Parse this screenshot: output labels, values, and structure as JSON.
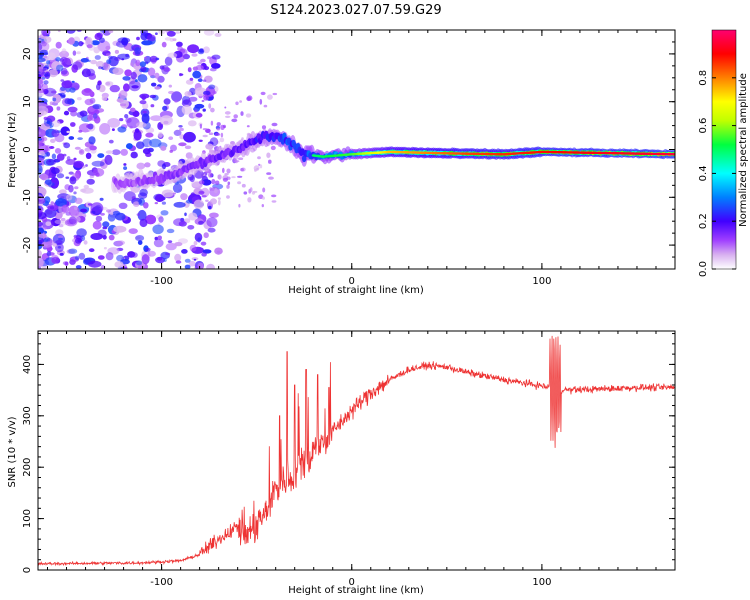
{
  "figure_title": "S124.2023.027.07.59.G29",
  "chart_data": [
    {
      "type": "heatmap",
      "xlabel": "Height of straight line (km)",
      "ylabel": "Frequency (Hz)",
      "xlim": [
        -165,
        170
      ],
      "ylim": [
        -25,
        25
      ],
      "x_ticks": [
        -100,
        0,
        100
      ],
      "y_ticks": [
        -20,
        -10,
        0,
        10,
        20
      ],
      "colorbar": {
        "label": "Normalized spectral amplitude",
        "range": [
          0.0,
          1.0
        ],
        "ticks": [
          "0.0",
          "0.2",
          "0.4",
          "0.6",
          "0.8"
        ],
        "tick_values": [
          0.0,
          0.2,
          0.4,
          0.6,
          0.8
        ],
        "colors": [
          "#ffffff",
          "#d8b0f0",
          "#a040ff",
          "#4000ff",
          "#0080ff",
          "#00ffff",
          "#00ff40",
          "#c0ff00",
          "#ffff00",
          "#ff8000",
          "#ff0000",
          "#ff0070"
        ]
      },
      "ridge": {
        "description_points": [
          {
            "x": -120,
            "f": -7
          },
          {
            "x": -100,
            "f": -6
          },
          {
            "x": -80,
            "f": -3
          },
          {
            "x": -60,
            "f": 0
          },
          {
            "x": -45,
            "f": 3
          },
          {
            "x": -35,
            "f": 2
          },
          {
            "x": -25,
            "f": -1
          },
          {
            "x": -15,
            "f": -1.5
          },
          {
            "x": 0,
            "f": -1
          },
          {
            "x": 20,
            "f": -0.5
          },
          {
            "x": 50,
            "f": -0.8
          },
          {
            "x": 80,
            "f": -1
          },
          {
            "x": 100,
            "f": -0.5
          },
          {
            "x": 170,
            "f": -1
          }
        ],
        "amplitude": [
          {
            "x": -120,
            "a": 0.2
          },
          {
            "x": -80,
            "a": 0.25
          },
          {
            "x": -60,
            "a": 0.3
          },
          {
            "x": -40,
            "a": 0.4
          },
          {
            "x": -20,
            "a": 0.5
          },
          {
            "x": 0,
            "a": 0.55
          },
          {
            "x": 20,
            "a": 0.75
          },
          {
            "x": 60,
            "a": 0.85
          },
          {
            "x": 110,
            "a": 0.9
          },
          {
            "x": 170,
            "a": 0.95
          }
        ]
      }
    },
    {
      "type": "line",
      "xlabel": "Height of straight line (km)",
      "ylabel": "SNR (10 * v/v)",
      "xlim": [
        -165,
        170
      ],
      "ylim": [
        0,
        465
      ],
      "x_ticks": [
        -100,
        0,
        100
      ],
      "y_ticks": [
        0,
        100,
        200,
        300,
        400
      ],
      "line_color": "#ee3333",
      "envelope": [
        {
          "x": -165,
          "y": 12
        },
        {
          "x": -110,
          "y": 14
        },
        {
          "x": -90,
          "y": 18
        },
        {
          "x": -80,
          "y": 30
        },
        {
          "x": -70,
          "y": 60
        },
        {
          "x": -60,
          "y": 85
        },
        {
          "x": -55,
          "y": 70
        },
        {
          "x": -45,
          "y": 110
        },
        {
          "x": -40,
          "y": 160
        },
        {
          "x": -30,
          "y": 190
        },
        {
          "x": -20,
          "y": 230
        },
        {
          "x": -10,
          "y": 270
        },
        {
          "x": 0,
          "y": 310
        },
        {
          "x": 10,
          "y": 345
        },
        {
          "x": 20,
          "y": 370
        },
        {
          "x": 30,
          "y": 390
        },
        {
          "x": 40,
          "y": 398
        },
        {
          "x": 50,
          "y": 395
        },
        {
          "x": 60,
          "y": 385
        },
        {
          "x": 80,
          "y": 370
        },
        {
          "x": 100,
          "y": 358
        },
        {
          "x": 110,
          "y": 350
        },
        {
          "x": 130,
          "y": 352
        },
        {
          "x": 150,
          "y": 355
        },
        {
          "x": 170,
          "y": 355
        }
      ],
      "spikes": [
        {
          "x": -38,
          "y": 300
        },
        {
          "x": -34,
          "y": 425
        },
        {
          "x": -30,
          "y": 360
        },
        {
          "x": -24,
          "y": 390
        },
        {
          "x": -18,
          "y": 380
        },
        {
          "x": -12,
          "y": 355
        },
        {
          "x": 107,
          "y": 465
        },
        {
          "x": 108,
          "y": 240
        }
      ]
    }
  ]
}
